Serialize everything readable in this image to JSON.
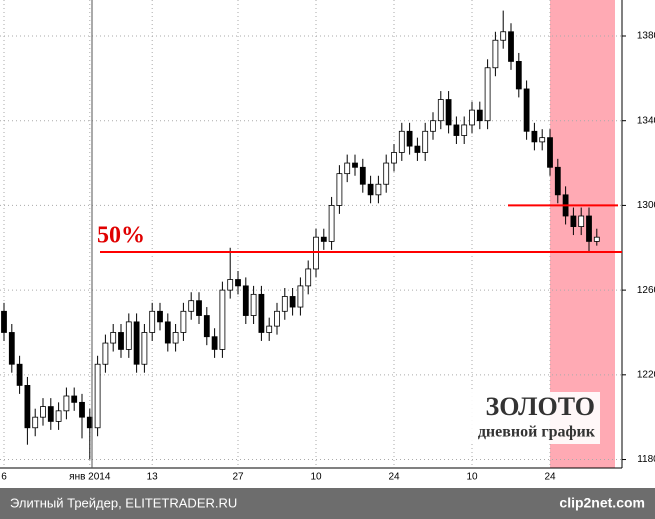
{
  "chart_data": {
    "type": "candlestick",
    "title": "ЗОЛОТО",
    "subtitle": "дневной график",
    "annotation": "50%",
    "levels": [
      1278,
      1300
    ],
    "footer": "Элитный Трейдер, ELITETRADER.RU",
    "watermark": "clip2net.com",
    "up_color": "#ffffff",
    "down_color": "#000000",
    "level_color": "#ff0000",
    "categories": [
      "6",
      null,
      null,
      null,
      null,
      null,
      null,
      null,
      null,
      null,
      null,
      "янв 2014",
      null,
      null,
      null,
      null,
      null,
      null,
      null,
      "13",
      null,
      null,
      null,
      null,
      null,
      null,
      null,
      null,
      null,
      null,
      "27",
      null,
      null,
      null,
      null,
      null,
      null,
      null,
      null,
      null,
      "10",
      null,
      null,
      null,
      null,
      null,
      null,
      null,
      null,
      null,
      "24",
      null,
      null,
      null,
      null,
      null,
      null,
      null,
      null,
      null,
      "10",
      null,
      null,
      null,
      null,
      null,
      null,
      null,
      null,
      null,
      "24",
      null,
      null,
      null,
      null,
      null,
      null
    ],
    "open": [
      1250,
      1240,
      1225,
      1215,
      1195,
      1200,
      1205,
      1198,
      1203,
      1210,
      1207,
      1200,
      1195,
      1225,
      1235,
      1240,
      1232,
      1245,
      1225,
      1240,
      1250,
      1245,
      1235,
      1240,
      1250,
      1255,
      1248,
      1238,
      1232,
      1260,
      1265,
      1262,
      1248,
      1258,
      1240,
      1243,
      1250,
      1257,
      1252,
      1262,
      1270,
      1285,
      1283,
      1300,
      1315,
      1320,
      1318,
      1310,
      1305,
      1310,
      1320,
      1325,
      1335,
      1328,
      1325,
      1335,
      1340,
      1350,
      1338,
      1333,
      1338,
      1345,
      1340,
      1365,
      1378,
      1382,
      1368,
      1355,
      1335,
      1330,
      1332,
      1318,
      1305,
      1295,
      1290,
      1295,
      1283
    ],
    "high": [
      1254,
      1244,
      1229,
      1219,
      1204,
      1209,
      1209,
      1207,
      1214,
      1214,
      1211,
      1204,
      1229,
      1239,
      1244,
      1244,
      1249,
      1249,
      1244,
      1254,
      1254,
      1249,
      1244,
      1254,
      1259,
      1259,
      1252,
      1242,
      1264,
      1280,
      1269,
      1266,
      1262,
      1262,
      1247,
      1254,
      1261,
      1261,
      1266,
      1274,
      1289,
      1289,
      1304,
      1319,
      1324,
      1324,
      1322,
      1314,
      1314,
      1324,
      1329,
      1339,
      1339,
      1332,
      1339,
      1344,
      1354,
      1354,
      1342,
      1342,
      1349,
      1349,
      1369,
      1382,
      1392,
      1386,
      1372,
      1359,
      1339,
      1336,
      1336,
      1322,
      1309,
      1299,
      1299,
      1299,
      1289
    ],
    "low": [
      1236,
      1221,
      1211,
      1187,
      1191,
      1196,
      1194,
      1194,
      1199,
      1203,
      1190,
      1180,
      1191,
      1221,
      1231,
      1228,
      1228,
      1221,
      1221,
      1236,
      1241,
      1231,
      1231,
      1236,
      1246,
      1244,
      1234,
      1228,
      1228,
      1256,
      1258,
      1244,
      1244,
      1236,
      1236,
      1239,
      1246,
      1248,
      1248,
      1258,
      1266,
      1279,
      1279,
      1296,
      1311,
      1314,
      1306,
      1301,
      1301,
      1306,
      1316,
      1321,
      1324,
      1321,
      1321,
      1331,
      1336,
      1334,
      1329,
      1329,
      1334,
      1336,
      1336,
      1361,
      1374,
      1364,
      1351,
      1331,
      1326,
      1326,
      1314,
      1301,
      1291,
      1286,
      1286,
      1278,
      1281
    ],
    "close": [
      1240,
      1225,
      1215,
      1195,
      1200,
      1205,
      1198,
      1203,
      1210,
      1207,
      1200,
      1195,
      1225,
      1235,
      1240,
      1232,
      1245,
      1225,
      1240,
      1250,
      1245,
      1235,
      1240,
      1250,
      1255,
      1248,
      1238,
      1232,
      1260,
      1265,
      1262,
      1248,
      1258,
      1240,
      1243,
      1250,
      1257,
      1252,
      1262,
      1270,
      1285,
      1283,
      1300,
      1315,
      1320,
      1318,
      1310,
      1305,
      1310,
      1320,
      1325,
      1335,
      1328,
      1325,
      1335,
      1340,
      1350,
      1338,
      1333,
      1338,
      1345,
      1340,
      1365,
      1378,
      1382,
      1368,
      1355,
      1335,
      1330,
      1332,
      1318,
      1305,
      1295,
      1290,
      1295,
      1283,
      1285
    ],
    "ylim": [
      1176,
      1397
    ],
    "yticks": [
      1180,
      1220,
      1260,
      1300,
      1340,
      1380
    ],
    "grid": true
  }
}
